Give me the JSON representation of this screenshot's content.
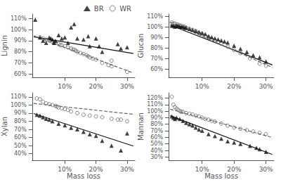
{
  "chart_data": [
    {
      "type": "scatter",
      "ylabel": "Lignin",
      "xlim": [
        -0.005,
        0.325
      ],
      "xticks": [
        {
          "value": 0.1,
          "label": "10%"
        },
        {
          "value": 0.2,
          "label": "20%"
        },
        {
          "value": 0.3,
          "label": "30%"
        }
      ],
      "ylim": [
        0.57,
        1.14
      ],
      "yticks": [
        {
          "value": 0.6,
          "label": "60%"
        },
        {
          "value": 0.7,
          "label": "70%"
        },
        {
          "value": 0.8,
          "label": "80%"
        },
        {
          "value": 0.9,
          "label": "90%"
        },
        {
          "value": 1.0,
          "label": "100%"
        },
        {
          "value": 1.1,
          "label": "110%"
        }
      ],
      "grid": false,
      "legend": "upper right",
      "series": [
        {
          "name": "BR",
          "type": "scatter",
          "color": "#111111",
          "marker": "triangle",
          "x": [
            0.005,
            0.02,
            0.03,
            0.04,
            0.05,
            0.055,
            0.06,
            0.065,
            0.07,
            0.08,
            0.09,
            0.1,
            0.11,
            0.12,
            0.13,
            0.14,
            0.16,
            0.175,
            0.18,
            0.2,
            0.21,
            0.22,
            0.27,
            0.28,
            0.3
          ],
          "values": [
            1.09,
            0.93,
            0.9,
            0.88,
            0.93,
            0.92,
            0.91,
            0.88,
            0.9,
            0.95,
            0.92,
            0.93,
            0.88,
            1.02,
            1.05,
            0.92,
            0.91,
            0.94,
            0.85,
            0.92,
            0.85,
            0.8,
            0.87,
            0.83,
            0.84
          ]
        },
        {
          "name": "WR",
          "type": "scatter",
          "color": "#666666",
          "marker": "open_circle",
          "x": [
            0.02,
            0.03,
            0.04,
            0.05,
            0.06,
            0.065,
            0.07,
            0.08,
            0.085,
            0.09,
            0.1,
            0.11,
            0.12,
            0.125,
            0.13,
            0.135,
            0.14,
            0.15,
            0.16,
            0.17,
            0.175,
            0.18,
            0.19,
            0.2,
            0.22,
            0.24,
            0.25,
            0.25,
            0.3
          ],
          "values": [
            0.93,
            0.92,
            0.91,
            0.9,
            0.89,
            0.88,
            0.88,
            0.87,
            0.86,
            0.86,
            0.85,
            0.84,
            0.83,
            0.82,
            0.82,
            0.81,
            0.8,
            0.79,
            0.78,
            0.77,
            0.76,
            0.75,
            0.74,
            0.73,
            0.7,
            0.68,
            0.67,
            0.72,
            0.62
          ]
        },
        {
          "type": "line",
          "color": "#111111",
          "line_style": "solid",
          "x": [
            0.0,
            0.32
          ],
          "values": [
            0.935,
            0.7846
          ]
        },
        {
          "type": "line",
          "color": "#666666",
          "line_style": "dashed",
          "x": [
            0.0,
            0.32
          ],
          "values": [
            0.945,
            0.609
          ]
        }
      ]
    },
    {
      "type": "scatter",
      "ylabel": "Glucan",
      "xlim": [
        -0.005,
        0.325
      ],
      "xticks": [
        {
          "value": 0.1,
          "label": "10%"
        },
        {
          "value": 0.2,
          "label": "20%"
        },
        {
          "value": 0.3,
          "label": "30%"
        }
      ],
      "ylim": [
        0.52,
        1.12
      ],
      "yticks": [
        {
          "value": 0.6,
          "label": "60%"
        },
        {
          "value": 0.7,
          "label": "70%"
        },
        {
          "value": 0.8,
          "label": "80%"
        },
        {
          "value": 0.9,
          "label": "90%"
        },
        {
          "value": 1.0,
          "label": "100%"
        },
        {
          "value": 1.1,
          "label": "110%"
        }
      ],
      "grid": false,
      "series": [
        {
          "name": "BR",
          "type": "scatter",
          "color": "#111111",
          "marker": "triangle",
          "x": [
            0.005,
            0.01,
            0.015,
            0.02,
            0.025,
            0.03,
            0.035,
            0.04,
            0.045,
            0.05,
            0.06,
            0.07,
            0.08,
            0.09,
            0.1,
            0.11,
            0.12,
            0.13,
            0.14,
            0.15,
            0.16,
            0.17,
            0.18,
            0.2,
            0.22,
            0.24,
            0.26,
            0.28,
            0.3
          ],
          "values": [
            1.01,
            1.01,
            1.0,
            1.01,
            1.01,
            1.0,
            1.0,
            1.0,
            0.99,
            0.99,
            0.98,
            0.97,
            0.96,
            0.95,
            0.94,
            0.93,
            0.91,
            0.9,
            0.89,
            0.88,
            0.87,
            0.86,
            0.85,
            0.82,
            0.79,
            0.76,
            0.73,
            0.71,
            0.67
          ]
        },
        {
          "name": "WR",
          "type": "scatter",
          "color": "#666666",
          "marker": "open_circle",
          "x": [
            0.005,
            0.01,
            0.015,
            0.02,
            0.025,
            0.03,
            0.035,
            0.04,
            0.045,
            0.05,
            0.06,
            0.07,
            0.08,
            0.09,
            0.1,
            0.11,
            0.12,
            0.13,
            0.14,
            0.15,
            0.16,
            0.18,
            0.2,
            0.22,
            0.25,
            0.28,
            0.3
          ],
          "values": [
            1.04,
            1.03,
            1.03,
            1.02,
            1.02,
            1.01,
            1.01,
            1.0,
            1.0,
            0.99,
            0.98,
            0.97,
            0.96,
            0.94,
            0.93,
            0.91,
            0.9,
            0.88,
            0.87,
            0.86,
            0.84,
            0.81,
            0.78,
            0.75,
            0.7,
            0.65,
            0.63
          ]
        },
        {
          "type": "line",
          "color": "#111111",
          "line_style": "solid",
          "x": [
            0.0,
            0.32
          ],
          "values": [
            1.015,
            0.6374
          ]
        },
        {
          "type": "line",
          "color": "#666666",
          "line_style": "dashed",
          "x": [
            0.0,
            0.32
          ],
          "values": [
            1.045,
            0.613
          ]
        }
      ]
    },
    {
      "type": "scatter",
      "ylabel": "Xylan",
      "xlabel": "Mass loss",
      "xlim": [
        -0.005,
        0.325
      ],
      "xticks": [
        {
          "value": 0.1,
          "label": "10%"
        },
        {
          "value": 0.2,
          "label": "20%"
        },
        {
          "value": 0.3,
          "label": "30%"
        }
      ],
      "ylim": [
        0.32,
        1.15
      ],
      "yticks": [
        {
          "value": 0.4,
          "label": "40%"
        },
        {
          "value": 0.5,
          "label": "50%"
        },
        {
          "value": 0.6,
          "label": "60%"
        },
        {
          "value": 0.7,
          "label": "70%"
        },
        {
          "value": 0.8,
          "label": "80%"
        },
        {
          "value": 0.9,
          "label": "90%"
        },
        {
          "value": 1.0,
          "label": "100%"
        },
        {
          "value": 1.1,
          "label": "110%"
        }
      ],
      "grid": false,
      "series": [
        {
          "name": "BR",
          "type": "scatter",
          "color": "#111111",
          "marker": "triangle",
          "x": [
            0.01,
            0.02,
            0.03,
            0.04,
            0.05,
            0.06,
            0.08,
            0.1,
            0.12,
            0.14,
            0.16,
            0.18,
            0.2,
            0.22,
            0.25,
            0.28,
            0.3
          ],
          "values": [
            0.88,
            0.87,
            0.85,
            0.83,
            0.82,
            0.8,
            0.77,
            0.75,
            0.72,
            0.7,
            0.67,
            0.64,
            0.62,
            0.56,
            0.5,
            0.44,
            0.65
          ]
        },
        {
          "name": "WR",
          "type": "scatter",
          "color": "#666666",
          "marker": "open_circle",
          "x": [
            0.01,
            0.02,
            0.03,
            0.04,
            0.05,
            0.06,
            0.07,
            0.075,
            0.08,
            0.09,
            0.1,
            0.11,
            0.12,
            0.14,
            0.16,
            0.18,
            0.2,
            0.22,
            0.25,
            0.27,
            0.28,
            0.3
          ],
          "values": [
            1.08,
            1.07,
            1.04,
            1.02,
            1.01,
            1.0,
            0.99,
            0.98,
            0.97,
            0.96,
            0.95,
            0.94,
            0.92,
            0.9,
            0.88,
            0.87,
            0.86,
            0.85,
            0.83,
            0.82,
            0.82,
            0.8
          ]
        },
        {
          "type": "line",
          "color": "#111111",
          "line_style": "solid",
          "x": [
            0.0,
            0.32
          ],
          "values": [
            0.895,
            0.495
          ]
        },
        {
          "type": "line",
          "color": "#666666",
          "line_style": "dashed",
          "x": [
            0.0,
            0.32
          ],
          "values": [
            1.02,
            0.8856
          ]
        }
      ]
    },
    {
      "type": "scatter",
      "ylabel": "Mannan",
      "xlabel": "Mass loss",
      "xlim": [
        -0.005,
        0.325
      ],
      "xticks": [
        {
          "value": 0.1,
          "label": "10%"
        },
        {
          "value": 0.2,
          "label": "20%"
        },
        {
          "value": 0.3,
          "label": "30%"
        }
      ],
      "ylim": [
        0.25,
        1.28
      ],
      "yticks": [
        {
          "value": 0.3,
          "label": "30%"
        },
        {
          "value": 0.4,
          "label": "40%"
        },
        {
          "value": 0.5,
          "label": "50%"
        },
        {
          "value": 0.6,
          "label": "60%"
        },
        {
          "value": 0.7,
          "label": "70%"
        },
        {
          "value": 0.8,
          "label": "80%"
        },
        {
          "value": 0.9,
          "label": "90%"
        },
        {
          "value": 1.0,
          "label": "100%"
        },
        {
          "value": 1.1,
          "label": "110%"
        },
        {
          "value": 1.2,
          "label": "120%"
        }
      ],
      "grid": false,
      "series": [
        {
          "name": "BR",
          "type": "scatter",
          "color": "#111111",
          "marker": "triangle",
          "x": [
            0.005,
            0.01,
            0.015,
            0.02,
            0.03,
            0.04,
            0.05,
            0.06,
            0.07,
            0.08,
            0.09,
            0.1,
            0.12,
            0.14,
            0.16,
            0.18,
            0.2,
            0.22,
            0.25,
            0.27,
            0.28,
            0.3
          ],
          "values": [
            0.92,
            0.9,
            0.88,
            0.9,
            0.88,
            0.85,
            0.82,
            0.8,
            0.78,
            0.75,
            0.72,
            0.7,
            0.65,
            0.62,
            0.58,
            0.54,
            0.52,
            0.5,
            0.47,
            0.44,
            0.42,
            0.38
          ]
        },
        {
          "name": "WR",
          "type": "scatter",
          "color": "#666666",
          "marker": "open_circle",
          "x": [
            0.005,
            0.01,
            0.015,
            0.02,
            0.025,
            0.03,
            0.035,
            0.04,
            0.05,
            0.06,
            0.07,
            0.08,
            0.09,
            0.1,
            0.11,
            0.12,
            0.13,
            0.14,
            0.16,
            0.18,
            0.2,
            0.22,
            0.24,
            0.26,
            0.28,
            0.3
          ],
          "values": [
            1.22,
            1.1,
            1.06,
            1.04,
            1.02,
            1.0,
            0.99,
            0.99,
            0.97,
            0.96,
            0.95,
            0.93,
            0.92,
            0.9,
            0.88,
            0.87,
            0.85,
            0.84,
            0.81,
            0.78,
            0.75,
            0.73,
            0.71,
            0.69,
            0.67,
            0.65
          ]
        },
        {
          "type": "line",
          "color": "#111111",
          "line_style": "solid",
          "x": [
            0.0,
            0.32
          ],
          "values": [
            0.93,
            0.338
          ]
        },
        {
          "type": "line",
          "color": "#666666",
          "line_style": "dashed",
          "x": [
            0.0,
            0.32
          ],
          "values": [
            1.03,
            0.598
          ]
        }
      ]
    }
  ]
}
